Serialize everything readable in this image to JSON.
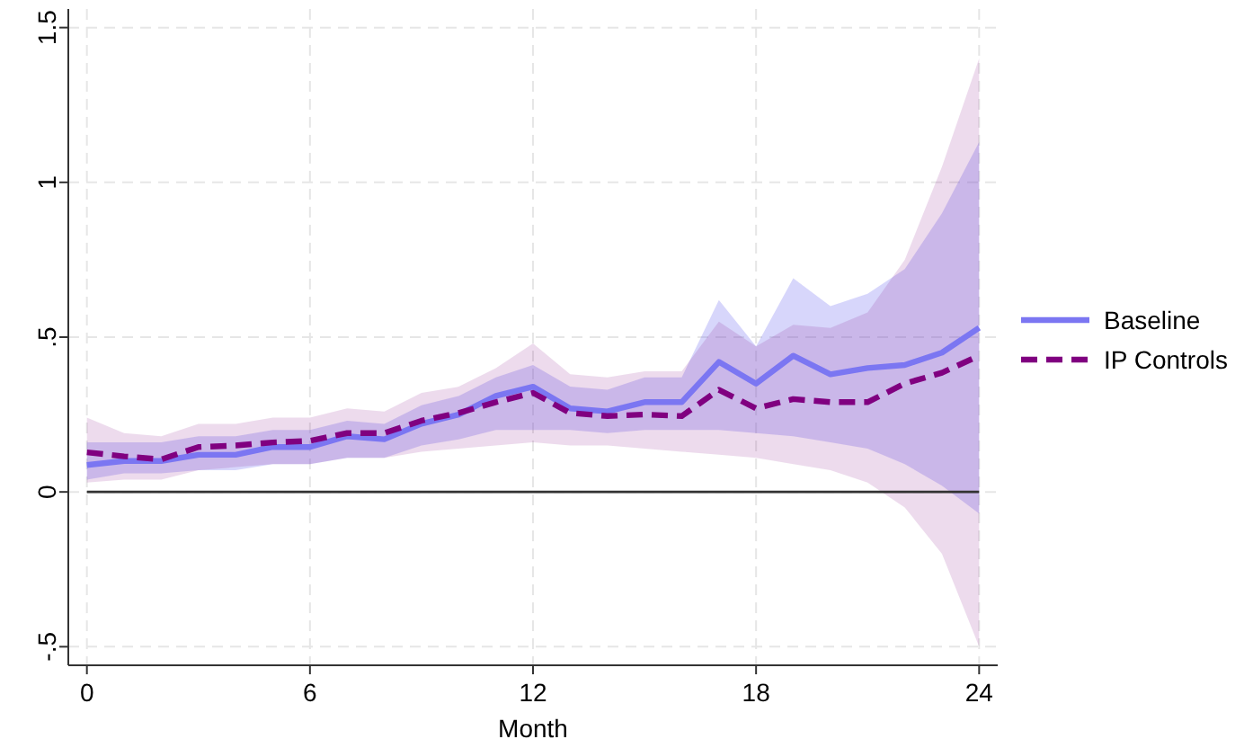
{
  "chart_data": {
    "type": "line",
    "xlabel": "Month",
    "x": [
      0,
      1,
      2,
      3,
      4,
      5,
      6,
      7,
      8,
      9,
      10,
      11,
      12,
      13,
      14,
      15,
      16,
      17,
      18,
      19,
      20,
      21,
      22,
      23,
      24
    ],
    "xlim": [
      -0.5,
      24.5
    ],
    "xticks": [
      0,
      6,
      12,
      18,
      24
    ],
    "ylim": [
      -0.56,
      1.56
    ],
    "yticks": [
      {
        "value": -0.5,
        "label": "-.5"
      },
      0,
      {
        "value": 0.5,
        "label": ".5"
      },
      1,
      1.5
    ],
    "grid": true,
    "legend": "right",
    "ref_lines": [
      {
        "axis": "y",
        "value": 0,
        "color": "#333333"
      }
    ],
    "series": [
      {
        "name": "Baseline",
        "color": "#7b76f2",
        "line_style": "solid",
        "values": [
          0.087,
          0.1,
          0.1,
          0.12,
          0.12,
          0.145,
          0.145,
          0.18,
          0.17,
          0.22,
          0.25,
          0.31,
          0.34,
          0.27,
          0.26,
          0.29,
          0.29,
          0.42,
          0.35,
          0.44,
          0.38,
          0.4,
          0.41,
          0.45,
          0.53
        ],
        "lower": [
          0.04,
          0.06,
          0.06,
          0.07,
          0.07,
          0.09,
          0.09,
          0.11,
          0.11,
          0.15,
          0.17,
          0.2,
          0.2,
          0.2,
          0.19,
          0.2,
          0.2,
          0.2,
          0.19,
          0.18,
          0.16,
          0.14,
          0.09,
          0.02,
          -0.07
        ],
        "upper": [
          0.16,
          0.16,
          0.16,
          0.18,
          0.18,
          0.2,
          0.2,
          0.23,
          0.22,
          0.28,
          0.31,
          0.37,
          0.41,
          0.34,
          0.33,
          0.37,
          0.37,
          0.62,
          0.47,
          0.69,
          0.6,
          0.64,
          0.72,
          0.9,
          1.13
        ]
      },
      {
        "name": "IP Controls",
        "color": "#800080",
        "line_style": "dashed",
        "values": [
          0.128,
          0.115,
          0.105,
          0.145,
          0.15,
          0.16,
          0.165,
          0.19,
          0.19,
          0.23,
          0.255,
          0.29,
          0.32,
          0.255,
          0.245,
          0.25,
          0.245,
          0.33,
          0.27,
          0.3,
          0.29,
          0.29,
          0.35,
          0.385,
          0.44
        ],
        "lower": [
          0.03,
          0.04,
          0.04,
          0.07,
          0.08,
          0.09,
          0.09,
          0.11,
          0.11,
          0.13,
          0.14,
          0.15,
          0.16,
          0.15,
          0.15,
          0.14,
          0.13,
          0.12,
          0.11,
          0.09,
          0.07,
          0.03,
          -0.05,
          -0.2,
          -0.5
        ],
        "upper": [
          0.24,
          0.19,
          0.18,
          0.22,
          0.22,
          0.24,
          0.24,
          0.27,
          0.26,
          0.32,
          0.34,
          0.4,
          0.48,
          0.38,
          0.37,
          0.39,
          0.39,
          0.55,
          0.47,
          0.54,
          0.53,
          0.58,
          0.75,
          1.05,
          1.4
        ]
      }
    ]
  }
}
